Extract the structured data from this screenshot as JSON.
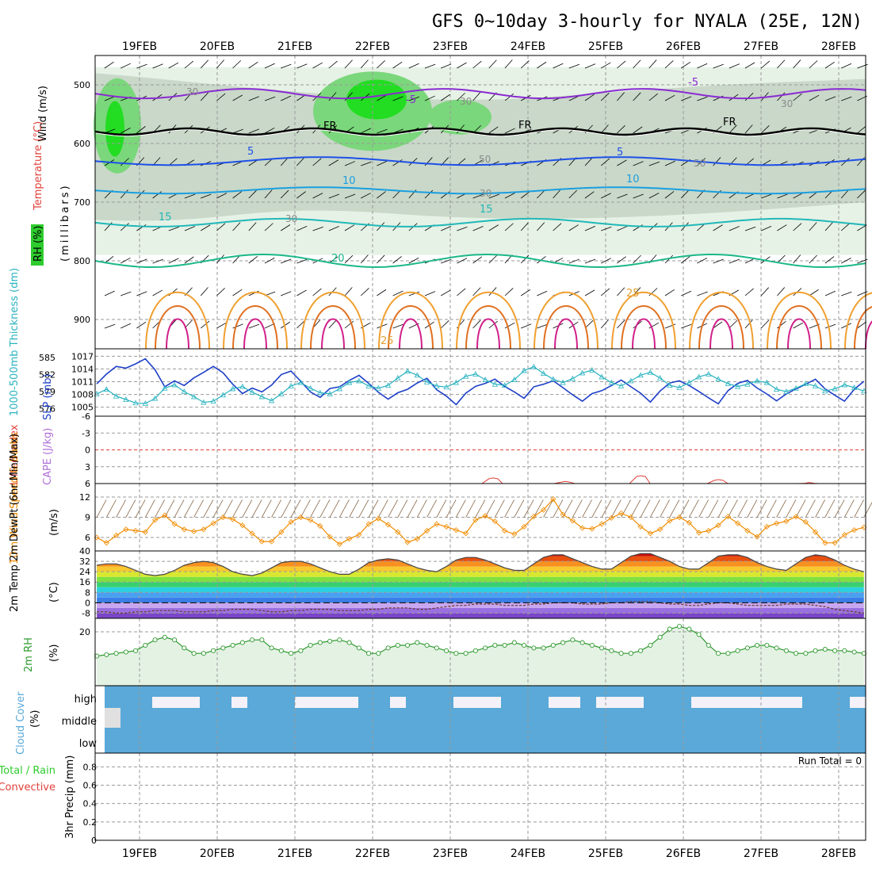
{
  "title": "GFS 0~10day 3-hourly for NYALA (25E, 12N)",
  "dates": [
    "19FEB",
    "20FEB",
    "21FEB",
    "22FEB",
    "23FEB",
    "24FEB",
    "25FEB",
    "26FEB",
    "27FEB",
    "28FEB"
  ],
  "colors": {
    "rh": "#2ecc2e",
    "temperature": "#e0413a",
    "wind": "#000000",
    "thickness": "#2ab3c0",
    "slp": "#1e3fc8",
    "lifted_index": "#e0413a",
    "cape": "#b070d8",
    "wind10m": "#f08c00",
    "rh2m": "#2f9a2f",
    "cloud": "#5aa9d8",
    "precip_total": "#2ecc2e",
    "precip_conv": "#e0413a"
  },
  "chart_data": [
    {
      "type": "heatmap",
      "panel": "upper_air",
      "ylabel_parts": [
        "RH (%)",
        "Temperature (°C)",
        "Wind (m/s)"
      ],
      "yaxis_label": "(millibars)",
      "yticks": [
        500,
        600,
        700,
        800,
        900
      ],
      "ylim": [
        950,
        450
      ],
      "isotherm_labels": [
        "-5",
        "-5",
        "FR",
        "FR",
        "FR",
        "5",
        "5",
        "10",
        "10",
        "15",
        "15",
        "20",
        "25",
        "25"
      ],
      "rh_labels": [
        "30",
        "30",
        "30",
        "50",
        "50",
        "30",
        "30"
      ]
    },
    {
      "type": "line",
      "panel": "thickness_slp",
      "ylabel_left": "1000-500mb Thickness (dm)",
      "ylabel_right": "SLP (mb)",
      "yticks_left": [
        576,
        579,
        582,
        585
      ],
      "yticks_right": [
        1005,
        1008,
        1011,
        1014,
        1017
      ],
      "series": [
        {
          "name": "SLP (mb)",
          "values": [
            1010.5,
            1012.8,
            1014.6,
            1014.2,
            1015.2,
            1016.4,
            1013.8,
            1009.8,
            1011.2,
            1010.1,
            1011.9,
            1013.2,
            1014.6,
            1013.1,
            1010.4,
            1008.2,
            1009.5,
            1008.6,
            1010.2,
            1012.7,
            1013.5,
            1011.1,
            1008.6,
            1007.3,
            1009.4,
            1009.8,
            1011.3,
            1012.5,
            1010.6,
            1008.5,
            1006.9,
            1008.4,
            1009.2,
            1010.7,
            1011.8,
            1009.1,
            1007.6,
            1005.6,
            1008.3,
            1009.9,
            1010.6,
            1011.6,
            1009.9,
            1008.6,
            1007.1,
            1009.8,
            1010.4,
            1011.2,
            1009.6,
            1007.9,
            1006.4,
            1008.2,
            1008.9,
            1010.1,
            1011.4,
            1009.8,
            1008.3,
            1006.2,
            1008.8,
            1010.7,
            1011.2,
            1010.1,
            1008.7,
            1007.2,
            1005.8,
            1008.9,
            1010.6,
            1011.3,
            1009.5,
            1008.1,
            1006.5,
            1008.1,
            1009.3,
            1010.4,
            1011.6,
            1009.3,
            1007.8,
            1006.4,
            1009.2,
            1011.1
          ]
        },
        {
          "name": "1000-500mb Thickness (dm)",
          "values": [
            578.6,
            579.4,
            578.2,
            577.6,
            577.0,
            576.9,
            577.8,
            579.6,
            580.2,
            579.0,
            578.1,
            577.1,
            577.3,
            578.4,
            579.5,
            579.9,
            578.9,
            578.1,
            577.4,
            578.6,
            580.0,
            580.6,
            579.6,
            578.8,
            578.6,
            579.5,
            580.6,
            580.9,
            580.0,
            579.6,
            580.1,
            581.4,
            582.6,
            581.9,
            580.7,
            580.0,
            579.8,
            580.6,
            581.7,
            582.1,
            581.1,
            580.3,
            580.1,
            581.1,
            582.7,
            583.4,
            582.2,
            581.2,
            580.6,
            581.3,
            582.3,
            582.8,
            581.6,
            580.6,
            580.0,
            580.9,
            581.9,
            582.4,
            581.4,
            580.1,
            579.7,
            580.6,
            581.6,
            582.1,
            581.2,
            580.4,
            579.9,
            580.3,
            580.9,
            580.6,
            579.4,
            579.0,
            579.6,
            580.4,
            580.0,
            579.1,
            579.5,
            580.2,
            579.7,
            579.1
          ]
        }
      ]
    },
    {
      "type": "line",
      "panel": "stability",
      "ylabel": "Lifted Index",
      "ylabel2": "CAPE (J/kg)",
      "yticks": [
        "-6",
        "-3",
        "0",
        "3",
        "6"
      ],
      "ylim": [
        -6,
        6
      ],
      "series": [
        {
          "name": "Lifted Index (peaks)",
          "x_days": [
            4.55,
            5.48,
            6.45,
            7.45,
            8.62
          ],
          "values": [
            5.0,
            5.6,
            4.6,
            5.3,
            5.8
          ]
        }
      ]
    },
    {
      "type": "line",
      "panel": "wind10m",
      "ylabel": "10m Wind Speed & Barbs",
      "yunits": "(m/s)",
      "yticks": [
        6,
        9,
        12
      ],
      "ylim": [
        4,
        14
      ],
      "series": [
        {
          "name": "10m Wind Speed",
          "values": [
            6.0,
            5.2,
            6.3,
            7.2,
            7.0,
            6.8,
            8.6,
            9.3,
            8.0,
            7.2,
            6.9,
            7.2,
            8.1,
            9.0,
            8.7,
            7.8,
            6.6,
            5.4,
            5.4,
            6.8,
            8.3,
            9.0,
            8.6,
            7.7,
            6.1,
            5.0,
            5.8,
            6.4,
            8.0,
            8.8,
            7.9,
            6.8,
            5.3,
            5.8,
            7.0,
            8.0,
            7.6,
            7.1,
            6.6,
            8.6,
            9.2,
            8.4,
            7.0,
            6.5,
            7.6,
            9.1,
            10.1,
            11.7,
            9.4,
            8.5,
            7.4,
            7.3,
            8.0,
            8.9,
            9.6,
            9.0,
            7.6,
            6.6,
            7.2,
            8.5,
            9.0,
            8.2,
            6.7,
            7.0,
            7.8,
            9.1,
            8.1,
            7.0,
            6.1,
            7.6,
            8.1,
            8.4,
            9.1,
            8.3,
            6.8,
            5.2,
            5.2,
            6.4,
            7.1,
            7.5
          ]
        }
      ]
    },
    {
      "type": "area",
      "panel": "temp2m",
      "ylabel": "2m Temp 2m DewPt (6hr Min/Max)",
      "yunits": "(°C)",
      "yticks": [
        -8,
        0,
        8,
        16,
        24,
        32,
        40
      ],
      "ylim": [
        -12,
        40
      ],
      "series": [
        {
          "name": "2m Temp",
          "values": [
            29,
            30,
            30,
            28,
            25,
            22,
            21,
            22,
            25,
            29,
            31,
            32,
            31,
            28,
            24,
            22,
            21,
            23,
            27,
            31,
            32,
            32,
            30,
            27,
            24,
            22,
            22,
            26,
            31,
            33,
            34,
            33,
            30,
            27,
            25,
            24,
            28,
            33,
            35,
            35,
            33,
            30,
            27,
            25,
            25,
            30,
            35,
            37,
            37,
            34,
            31,
            28,
            26,
            26,
            31,
            36,
            38,
            38,
            35,
            32,
            28,
            26,
            26,
            31,
            36,
            37,
            37,
            35,
            31,
            28,
            26,
            25,
            30,
            35,
            37,
            36,
            33,
            29,
            26,
            24
          ]
        },
        {
          "name": "2m DewPt",
          "values": [
            -7,
            -7,
            -8,
            -8,
            -7,
            -7,
            -6,
            -6,
            -6,
            -7,
            -7,
            -7,
            -6,
            -6,
            -5,
            -5,
            -5,
            -6,
            -7,
            -7,
            -6,
            -6,
            -5,
            -5,
            -5,
            -6,
            -6,
            -6,
            -5,
            -5,
            -4,
            -4,
            -4,
            -5,
            -5,
            -4,
            -3,
            -2,
            -2,
            -1,
            -1,
            -1,
            -2,
            -2,
            -2,
            -1,
            -1,
            0,
            0,
            0,
            -1,
            -1,
            -1,
            0,
            0,
            1,
            1,
            1,
            0,
            -1,
            -1,
            -2,
            -2,
            -1,
            0,
            0,
            -1,
            -2,
            -2,
            -2,
            -2,
            -1,
            -1,
            -1,
            -2,
            -3,
            -5,
            -6,
            -7,
            -8
          ]
        }
      ]
    },
    {
      "type": "line",
      "panel": "rh2m",
      "ylabel": "2m RH",
      "yunits": "(%)",
      "yticks": [
        20
      ],
      "ylim": [
        0,
        25
      ],
      "series": [
        {
          "name": "2m RH",
          "values": [
            11,
            11.5,
            12,
            12.5,
            13,
            15,
            17,
            18,
            17,
            14,
            12,
            12,
            13,
            14,
            15,
            16,
            17,
            17,
            14,
            13,
            12,
            13,
            15,
            16,
            16.5,
            17,
            16,
            14,
            12,
            12,
            14,
            15,
            15,
            16,
            15,
            14,
            13,
            12,
            12,
            13,
            14,
            15,
            15,
            16,
            15,
            14,
            14,
            15,
            16,
            17,
            16,
            15,
            14,
            13,
            12,
            12,
            13,
            15,
            18,
            21,
            22,
            21,
            19,
            15,
            12,
            12,
            13,
            14,
            15,
            15,
            14,
            13,
            12,
            12,
            13,
            13.5,
            13,
            13,
            12.5,
            12
          ]
        }
      ]
    },
    {
      "type": "heatmap",
      "panel": "cloud",
      "ylabel": "Cloud Cover",
      "yunits": "(%)",
      "levels": [
        "high",
        "middle",
        "low"
      ]
    },
    {
      "type": "bar",
      "panel": "precip",
      "ylabel_parts": [
        "Total / Rain",
        "Convective"
      ],
      "ylabel": "3hr Precip (mm)",
      "yticks": [
        "0",
        "0.2",
        "0.4",
        "0.6",
        "0.8"
      ],
      "ylim": [
        0,
        0.95
      ],
      "run_total": "Run Total = 0",
      "values": []
    }
  ]
}
